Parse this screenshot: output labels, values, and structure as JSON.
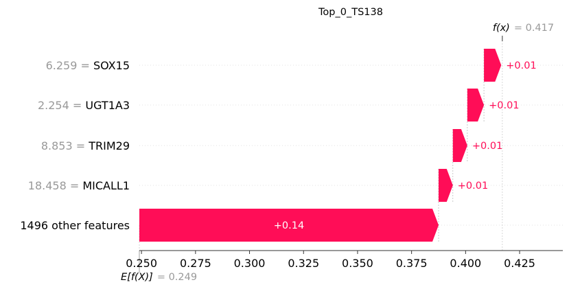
{
  "chart_data": {
    "type": "waterfall",
    "title": "Top_0_TS138",
    "xlim": [
      0.249,
      0.445
    ],
    "x_ticks": [
      "0.250",
      "0.275",
      "0.300",
      "0.325",
      "0.350",
      "0.375",
      "0.400",
      "0.425"
    ],
    "x_tick_values": [
      0.25,
      0.275,
      0.3,
      0.325,
      0.35,
      0.375,
      0.4,
      0.425
    ],
    "base_value": 0.249,
    "base_label": "E[f(X)]",
    "base_value_text": "= 0.249",
    "output_value": 0.417,
    "output_label": "f(x)",
    "output_value_text": "= 0.417",
    "positive_color": "#ff0d57",
    "features": [
      {
        "value_text": "6.259",
        "name": "SOX15",
        "start": 0.4085,
        "end": 0.4165,
        "label": "+0.01"
      },
      {
        "value_text": "2.254",
        "name": "UGT1A3",
        "start": 0.4008,
        "end": 0.4085,
        "label": "+0.01"
      },
      {
        "value_text": "8.853",
        "name": "TRIM29",
        "start": 0.3941,
        "end": 0.4008,
        "label": "+0.01"
      },
      {
        "value_text": "18.458",
        "name": "MICALL1",
        "start": 0.3875,
        "end": 0.3941,
        "label": "+0.01"
      },
      {
        "value_text": "",
        "name": "1496 other features",
        "start": 0.249,
        "end": 0.3875,
        "label": "+0.14"
      }
    ]
  }
}
